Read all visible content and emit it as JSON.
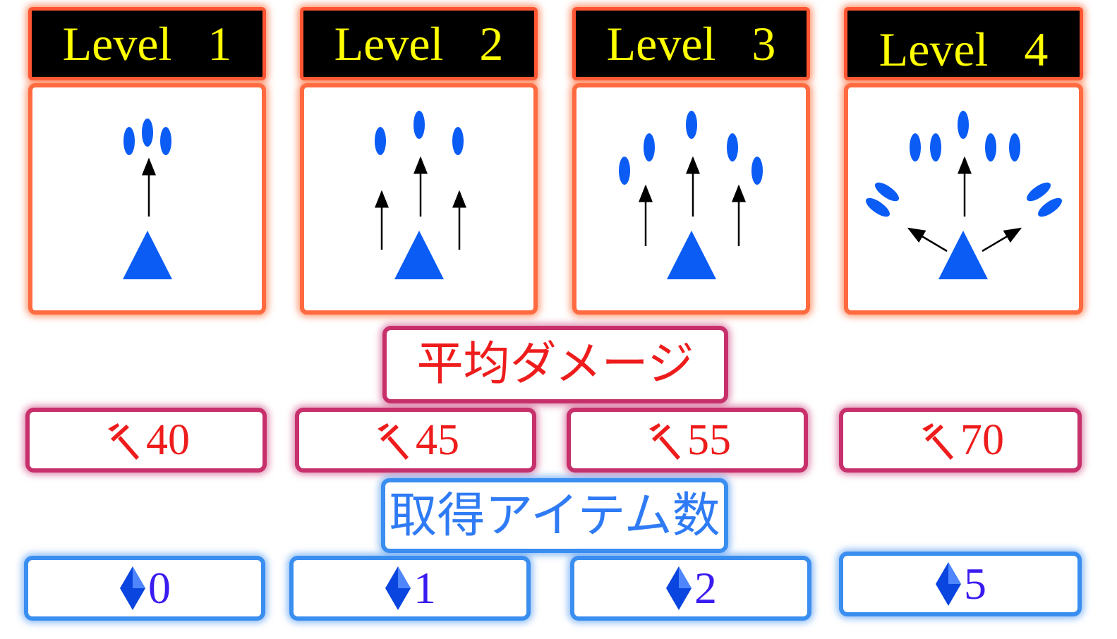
{
  "levels": [
    {
      "title": "Level   1"
    },
    {
      "title": "Level   2"
    },
    {
      "title": "Level   3"
    },
    {
      "title": "Level   4"
    }
  ],
  "damage": {
    "title": "平均ダメージ",
    "values": [
      "40",
      "45",
      "55",
      "70"
    ],
    "icon": "sword-icon"
  },
  "items": {
    "title": "取得アイテム数",
    "values": [
      "0",
      "1",
      "2",
      "5"
    ],
    "icon": "diamond-icon"
  },
  "colors": {
    "header_bg": "#000000",
    "header_text": "#ffff00",
    "card_border": "#ff6a40",
    "shape_blue": "#0a5cf5",
    "damage_border": "#c7306a",
    "damage_text": "#ee1c1c",
    "item_border": "#3a8ef0",
    "item_title_text": "#2f7bf5",
    "item_value_text": "#3a1cf0"
  }
}
